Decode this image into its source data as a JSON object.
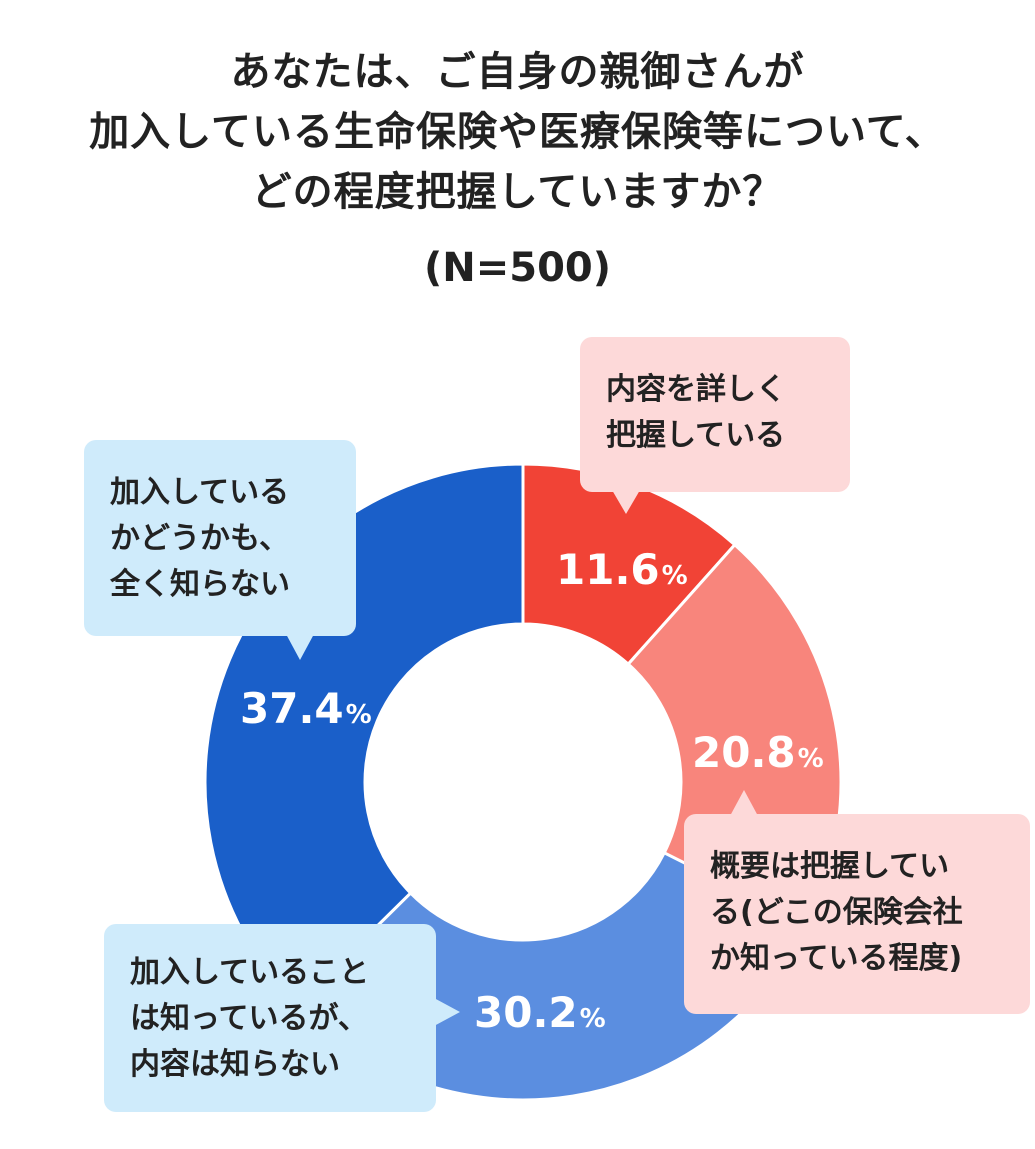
{
  "title_lines": [
    "あなたは、ご自身の親御さんが",
    "加入している生命保険や医療保険等について、",
    "どの程度把握していますか？"
  ],
  "subtitle": "(N=500)",
  "percent_unit": "%",
  "chart_data": {
    "type": "pie",
    "donut": true,
    "title": "あなたは、ご自身の親御さんが加入している生命保険や医療保険等について、どの程度把握していますか？",
    "subtitle": "(N=500)",
    "unit": "%",
    "slices": [
      {
        "value": 11.6,
        "label_text": "11.6",
        "callout_lines": [
          "内容を詳しく",
          "把握している"
        ],
        "color": "#F14336"
      },
      {
        "value": 20.8,
        "label_text": "20.8",
        "callout_lines": [
          "概要は把握してい",
          "る(どこの保険会社",
          "か知っている程度)"
        ],
        "color": "#F8857C"
      },
      {
        "value": 30.2,
        "label_text": "30.2",
        "callout_lines": [
          "加入していること",
          "は知っているが、",
          "内容は知らない"
        ],
        "color": "#5B8EE0"
      },
      {
        "value": 37.4,
        "label_text": "37.4",
        "callout_lines": [
          "加入している",
          "かどうかも、",
          "全く知らない"
        ],
        "color": "#1A5FC9"
      }
    ],
    "callout_colors": {
      "red": "#FDD9D9",
      "blue": "#CFEBFB"
    }
  }
}
